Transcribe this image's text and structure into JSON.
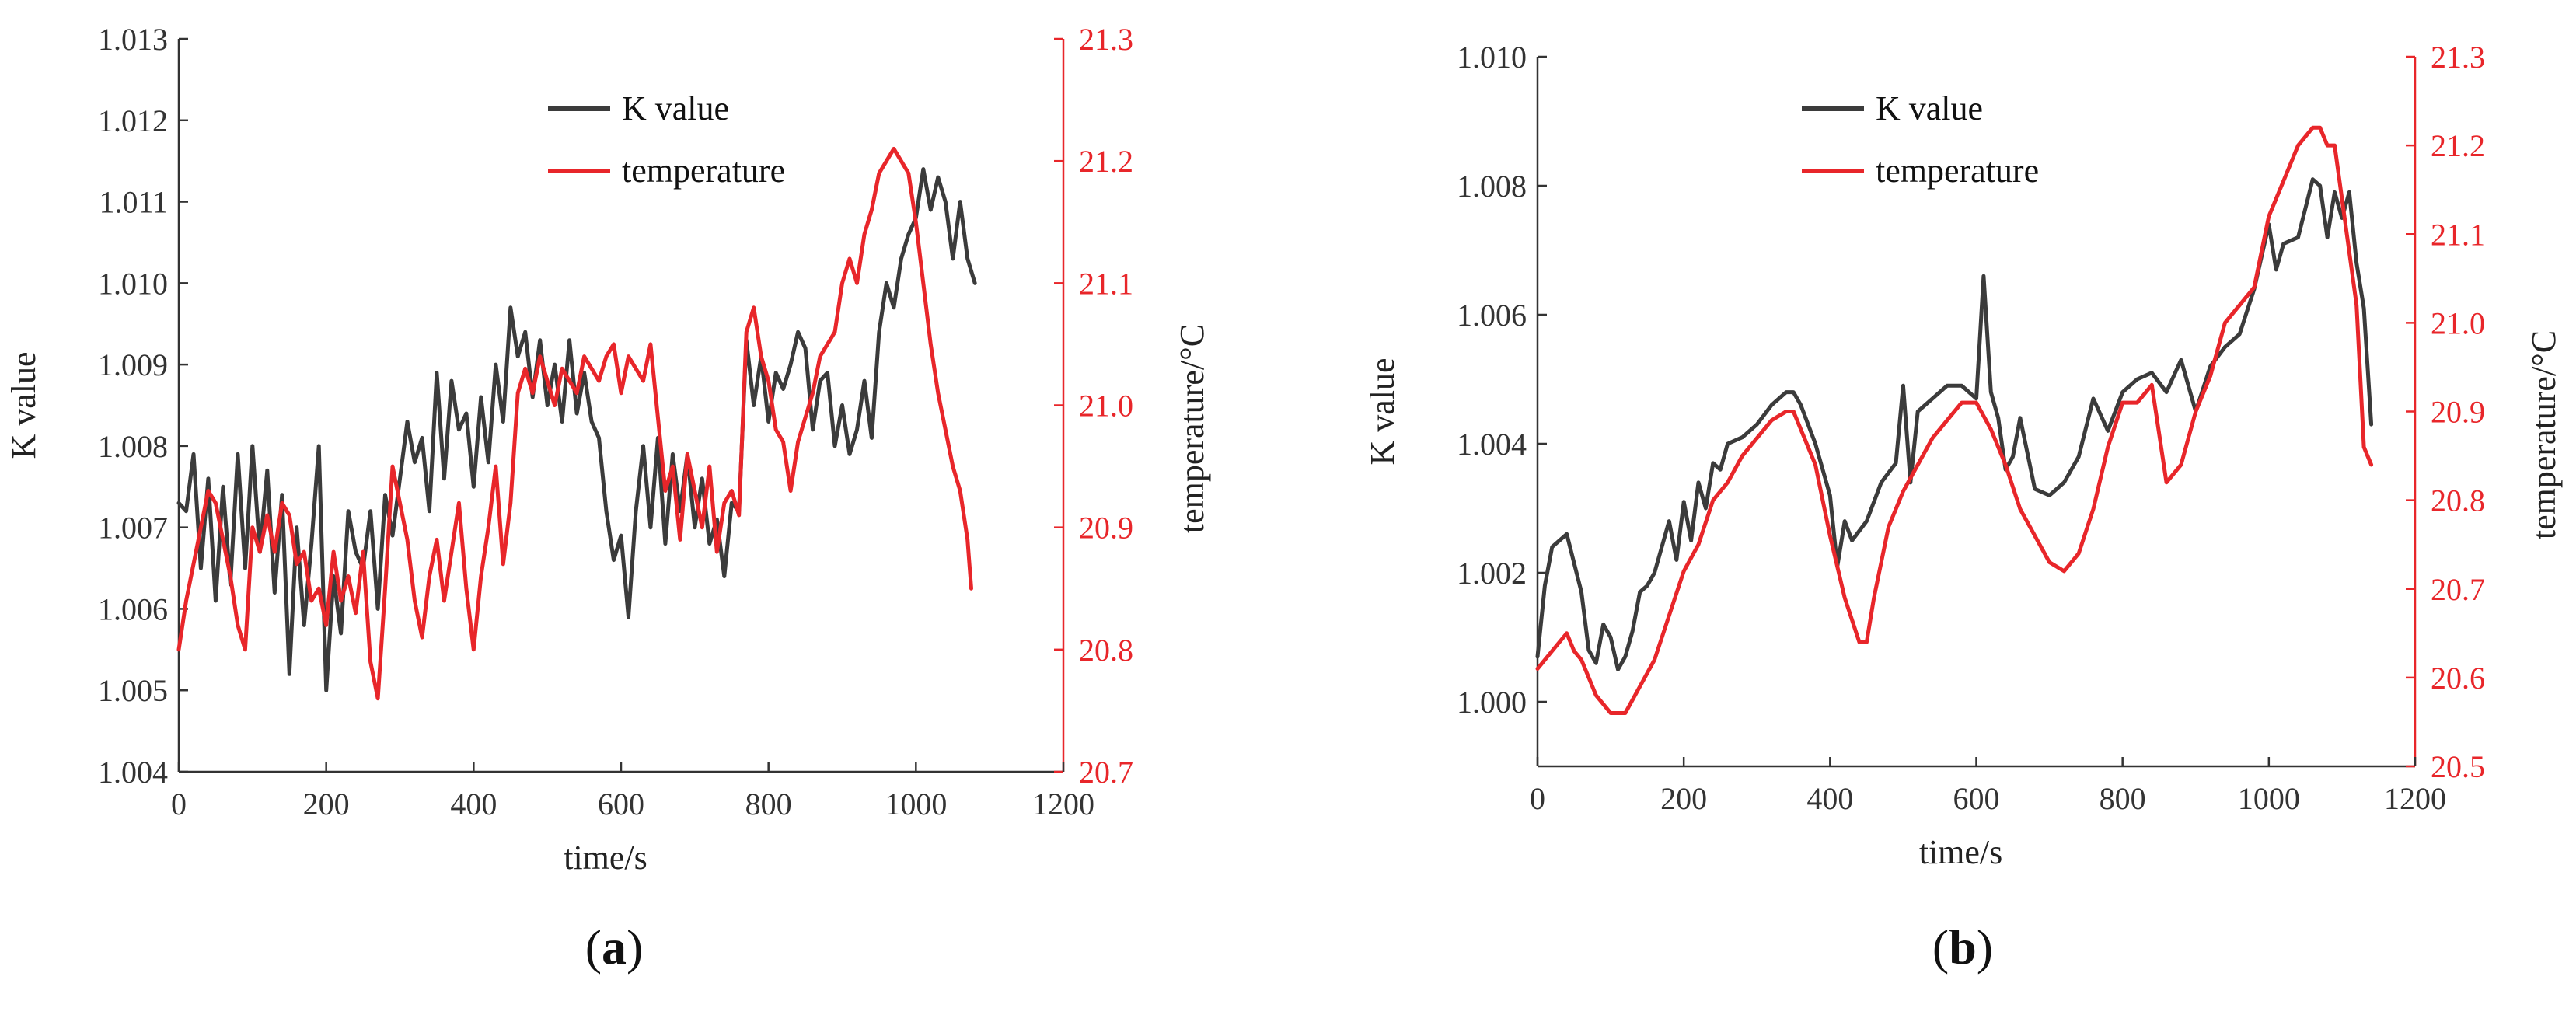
{
  "chart_data": [
    {
      "type": "line",
      "panel_label": "a",
      "xlabel": "time/s",
      "ylabel": "K value",
      "ylabel_right": "temperature/°C",
      "xlim": [
        0,
        1200
      ],
      "ylim": [
        1.004,
        1.013
      ],
      "ylim_right": [
        20.7,
        21.3
      ],
      "x_ticks": [
        "0",
        "200",
        "400",
        "600",
        "800",
        "1000",
        "1200"
      ],
      "y_ticks": [
        "1.004",
        "1.005",
        "1.006",
        "1.007",
        "1.008",
        "1.009",
        "1.010",
        "1.011",
        "1.012",
        "1.013"
      ],
      "y_ticks_right": [
        "20.7",
        "20.8",
        "20.9",
        "21.0",
        "21.1",
        "21.2",
        "21.3"
      ],
      "grid": false,
      "legend_position": "top-center",
      "series": [
        {
          "name": "K value",
          "axis": "left",
          "color": "#3b3b3b",
          "x": [
            0,
            10,
            20,
            30,
            40,
            50,
            60,
            70,
            80,
            90,
            100,
            110,
            120,
            130,
            140,
            150,
            160,
            170,
            180,
            190,
            200,
            210,
            220,
            230,
            240,
            250,
            260,
            270,
            280,
            290,
            300,
            310,
            320,
            330,
            340,
            350,
            360,
            370,
            380,
            390,
            400,
            410,
            420,
            430,
            440,
            450,
            460,
            470,
            480,
            490,
            500,
            510,
            520,
            530,
            540,
            550,
            560,
            570,
            580,
            590,
            600,
            610,
            620,
            630,
            640,
            650,
            660,
            670,
            680,
            690,
            700,
            710,
            720,
            730,
            740,
            750,
            760,
            770,
            780,
            790,
            800,
            810,
            820,
            830,
            840,
            850,
            860,
            870,
            880,
            890,
            900,
            910,
            920,
            930,
            940,
            950,
            960,
            970,
            980,
            990,
            1000,
            1010,
            1020,
            1030,
            1040,
            1050,
            1060,
            1070,
            1080
          ],
          "values": [
            1.0073,
            1.0072,
            1.0079,
            1.0065,
            1.0076,
            1.0061,
            1.0075,
            1.0063,
            1.0079,
            1.0065,
            1.008,
            1.0067,
            1.0077,
            1.0062,
            1.0074,
            1.0052,
            1.007,
            1.0058,
            1.0068,
            1.008,
            1.005,
            1.0064,
            1.0057,
            1.0072,
            1.0067,
            1.0065,
            1.0072,
            1.006,
            1.0074,
            1.0069,
            1.0076,
            1.0083,
            1.0078,
            1.0081,
            1.0072,
            1.0089,
            1.0076,
            1.0088,
            1.0082,
            1.0084,
            1.0075,
            1.0086,
            1.0078,
            1.009,
            1.0083,
            1.0097,
            1.0091,
            1.0094,
            1.0086,
            1.0093,
            1.0085,
            1.009,
            1.0083,
            1.0093,
            1.0084,
            1.0089,
            1.0083,
            1.0081,
            1.0072,
            1.0066,
            1.0069,
            1.0059,
            1.0072,
            1.008,
            1.007,
            1.0081,
            1.0068,
            1.0079,
            1.0072,
            1.0079,
            1.007,
            1.0076,
            1.0068,
            1.0071,
            1.0064,
            1.0073,
            1.0072,
            1.0093,
            1.0085,
            1.0091,
            1.0083,
            1.0089,
            1.0087,
            1.009,
            1.0094,
            1.0092,
            1.0082,
            1.0088,
            1.0089,
            1.008,
            1.0085,
            1.0079,
            1.0082,
            1.0088,
            1.0081,
            1.0094,
            1.01,
            1.0097,
            1.0103,
            1.0106,
            1.0108,
            1.0114,
            1.0109,
            1.0113,
            1.011,
            1.0103,
            1.011,
            1.0103,
            1.01
          ]
        },
        {
          "name": "temperature",
          "axis": "right",
          "color": "#e8262a",
          "x": [
            0,
            10,
            20,
            30,
            40,
            50,
            60,
            70,
            80,
            90,
            100,
            110,
            120,
            130,
            140,
            150,
            160,
            170,
            180,
            190,
            200,
            210,
            220,
            230,
            240,
            250,
            260,
            270,
            280,
            290,
            300,
            310,
            320,
            330,
            340,
            350,
            360,
            370,
            380,
            390,
            400,
            410,
            420,
            430,
            440,
            450,
            460,
            470,
            480,
            490,
            500,
            510,
            520,
            530,
            540,
            550,
            560,
            570,
            580,
            590,
            600,
            610,
            620,
            630,
            640,
            650,
            660,
            670,
            680,
            690,
            700,
            710,
            720,
            730,
            740,
            750,
            760,
            770,
            780,
            790,
            800,
            810,
            820,
            830,
            840,
            850,
            860,
            870,
            880,
            890,
            900,
            910,
            920,
            930,
            940,
            950,
            960,
            970,
            980,
            990,
            1000,
            1010,
            1020,
            1030,
            1040,
            1050,
            1060,
            1070,
            1075
          ],
          "values": [
            20.8,
            20.84,
            20.87,
            20.9,
            20.93,
            20.92,
            20.89,
            20.86,
            20.82,
            20.8,
            20.9,
            20.88,
            20.91,
            20.88,
            20.92,
            20.91,
            20.87,
            20.88,
            20.84,
            20.85,
            20.82,
            20.88,
            20.84,
            20.86,
            20.83,
            20.88,
            20.79,
            20.76,
            20.85,
            20.95,
            20.92,
            20.89,
            20.84,
            20.81,
            20.86,
            20.89,
            20.84,
            20.88,
            20.92,
            20.85,
            20.8,
            20.86,
            20.9,
            20.95,
            20.87,
            20.92,
            21.01,
            21.03,
            21.01,
            21.04,
            21.02,
            21.0,
            21.03,
            21.02,
            21.01,
            21.04,
            21.03,
            21.02,
            21.04,
            21.05,
            21.01,
            21.04,
            21.03,
            21.02,
            21.05,
            20.99,
            20.93,
            20.95,
            20.89,
            20.96,
            20.93,
            20.9,
            20.95,
            20.88,
            20.92,
            20.93,
            20.91,
            21.06,
            21.08,
            21.04,
            21.02,
            20.98,
            20.97,
            20.93,
            20.97,
            20.99,
            21.01,
            21.04,
            21.05,
            21.06,
            21.1,
            21.12,
            21.1,
            21.14,
            21.16,
            21.19,
            21.2,
            21.21,
            21.2,
            21.19,
            21.15,
            21.1,
            21.05,
            21.01,
            20.98,
            20.95,
            20.93,
            20.89,
            20.85
          ]
        }
      ]
    },
    {
      "type": "line",
      "panel_label": "b",
      "xlabel": "time/s",
      "ylabel": "K value",
      "ylabel_right": "temperature/°C",
      "xlim": [
        0,
        1200
      ],
      "ylim": [
        0.999,
        1.01
      ],
      "ylim_right": [
        20.5,
        21.3
      ],
      "x_ticks": [
        "0",
        "200",
        "400",
        "600",
        "800",
        "1000",
        "1200"
      ],
      "y_ticks": [
        "1.000",
        "1.002",
        "1.004",
        "1.006",
        "1.008",
        "1.010"
      ],
      "y_ticks_right": [
        "20.5",
        "20.6",
        "20.7",
        "20.8",
        "20.9",
        "21.0",
        "21.1",
        "21.2",
        "21.3"
      ],
      "grid": false,
      "legend_position": "top-center",
      "series": [
        {
          "name": "K value",
          "axis": "left",
          "color": "#3b3b3b",
          "x": [
            0,
            10,
            20,
            40,
            60,
            70,
            80,
            90,
            100,
            110,
            120,
            130,
            140,
            150,
            160,
            180,
            190,
            200,
            210,
            220,
            230,
            240,
            250,
            260,
            280,
            300,
            320,
            340,
            350,
            360,
            380,
            400,
            410,
            420,
            430,
            450,
            470,
            490,
            500,
            510,
            520,
            540,
            560,
            580,
            600,
            610,
            620,
            630,
            640,
            650,
            660,
            680,
            700,
            720,
            740,
            760,
            780,
            800,
            820,
            840,
            860,
            880,
            900,
            920,
            940,
            960,
            980,
            1000,
            1010,
            1020,
            1040,
            1060,
            1070,
            1080,
            1090,
            1100,
            1110,
            1120,
            1130,
            1140
          ],
          "values": [
            1.0007,
            1.0018,
            1.0024,
            1.0026,
            1.0017,
            1.0008,
            1.0006,
            1.0012,
            1.001,
            1.0005,
            1.0007,
            1.0011,
            1.0017,
            1.0018,
            1.002,
            1.0028,
            1.0022,
            1.0031,
            1.0025,
            1.0034,
            1.003,
            1.0037,
            1.0036,
            1.004,
            1.0041,
            1.0043,
            1.0046,
            1.0048,
            1.0048,
            1.0046,
            1.004,
            1.0032,
            1.0021,
            1.0028,
            1.0025,
            1.0028,
            1.0034,
            1.0037,
            1.0049,
            1.0034,
            1.0045,
            1.0047,
            1.0049,
            1.0049,
            1.0047,
            1.0066,
            1.0048,
            1.0044,
            1.0036,
            1.0038,
            1.0044,
            1.0033,
            1.0032,
            1.0034,
            1.0038,
            1.0047,
            1.0042,
            1.0048,
            1.005,
            1.0051,
            1.0048,
            1.0053,
            1.0045,
            1.0052,
            1.0055,
            1.0057,
            1.0064,
            1.0074,
            1.0067,
            1.0071,
            1.0072,
            1.0081,
            1.008,
            1.0072,
            1.0079,
            1.0075,
            1.0079,
            1.0068,
            1.0061,
            1.0043
          ]
        },
        {
          "name": "temperature",
          "axis": "right",
          "color": "#e8262a",
          "x": [
            0,
            20,
            40,
            50,
            60,
            80,
            100,
            120,
            140,
            160,
            180,
            200,
            220,
            240,
            260,
            280,
            300,
            320,
            340,
            350,
            360,
            380,
            400,
            420,
            440,
            450,
            460,
            480,
            500,
            520,
            540,
            560,
            580,
            600,
            620,
            640,
            660,
            680,
            700,
            720,
            740,
            760,
            780,
            800,
            820,
            840,
            860,
            880,
            900,
            920,
            940,
            960,
            980,
            1000,
            1020,
            1040,
            1060,
            1070,
            1080,
            1090,
            1100,
            1110,
            1120,
            1130,
            1140
          ],
          "values": [
            20.61,
            20.63,
            20.65,
            20.63,
            20.62,
            20.58,
            20.56,
            20.56,
            20.59,
            20.62,
            20.67,
            20.72,
            20.75,
            20.8,
            20.82,
            20.85,
            20.87,
            20.89,
            20.9,
            20.9,
            20.88,
            20.84,
            20.76,
            20.69,
            20.64,
            20.64,
            20.69,
            20.77,
            20.81,
            20.84,
            20.87,
            20.89,
            20.91,
            20.91,
            20.88,
            20.84,
            20.79,
            20.76,
            20.73,
            20.72,
            20.74,
            20.79,
            20.86,
            20.91,
            20.91,
            20.93,
            20.82,
            20.84,
            20.9,
            20.94,
            21.0,
            21.02,
            21.04,
            21.12,
            21.16,
            21.2,
            21.22,
            21.22,
            21.2,
            21.2,
            21.14,
            21.08,
            21.02,
            20.86,
            20.84
          ]
        }
      ]
    }
  ]
}
